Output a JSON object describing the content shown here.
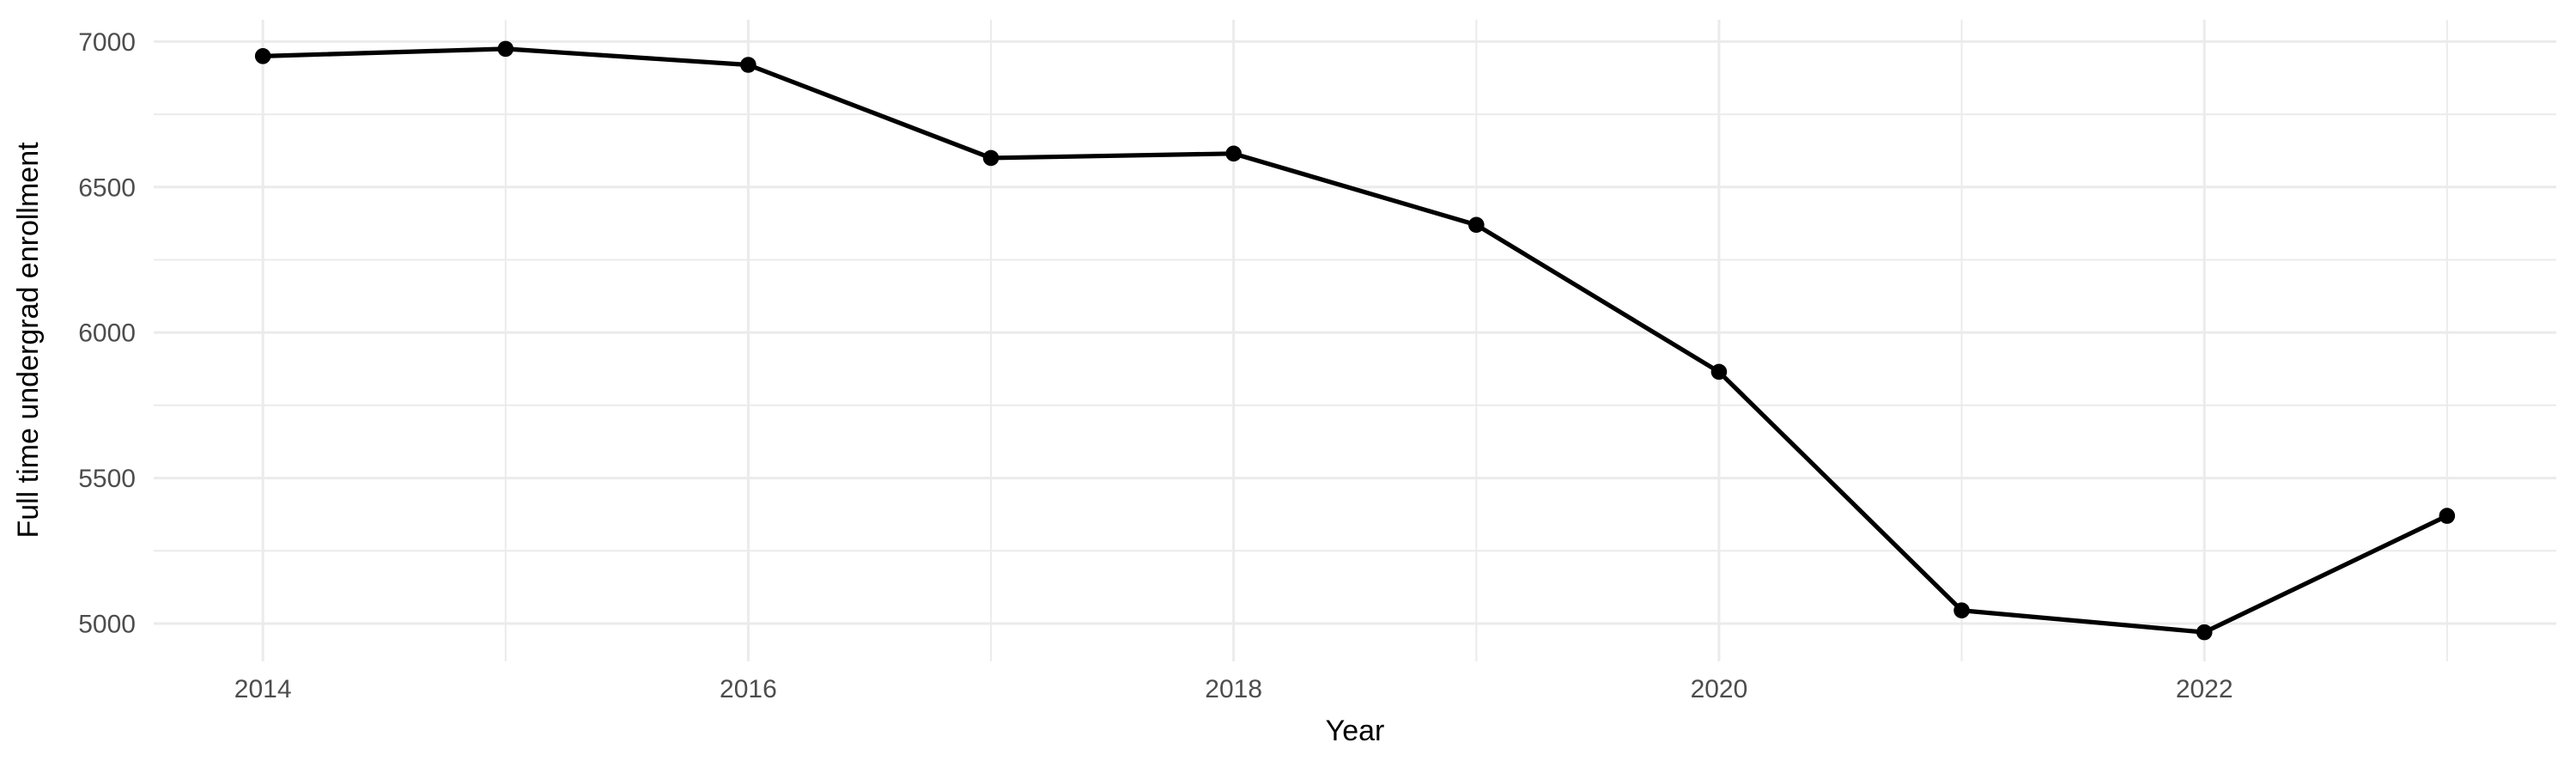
{
  "chart_data": {
    "type": "line",
    "title": "",
    "xlabel": "Year",
    "ylabel": "Full time undergrad enrollment",
    "x": [
      2014,
      2015,
      2016,
      2017,
      2018,
      2019,
      2020,
      2021,
      2022,
      2023
    ],
    "values": [
      6950,
      6975,
      6920,
      6600,
      6615,
      6370,
      5865,
      5045,
      4970,
      5370
    ],
    "series_name": "Full time undergrad enrollment",
    "x_axis": {
      "tick_labels": [
        2014,
        2016,
        2018,
        2020,
        2022
      ],
      "minor_gridlines": [
        2015,
        2017,
        2019,
        2021,
        2023
      ],
      "range": [
        2013.55,
        2023.45
      ]
    },
    "y_axis": {
      "tick_labels": [
        5000,
        5500,
        6000,
        6500,
        7000
      ],
      "minor_gridlines": [
        5250,
        5750,
        6250,
        6750
      ],
      "range": [
        4870,
        7075
      ]
    },
    "grid": "on",
    "legend_position": "none",
    "marker": "filled-circle",
    "colors": {
      "line": "#000000",
      "point": "#000000",
      "gridline": "#EBEBEB",
      "tick_text": "#4D4D4D",
      "axis_title": "#000000",
      "background": "#FFFFFF"
    }
  }
}
